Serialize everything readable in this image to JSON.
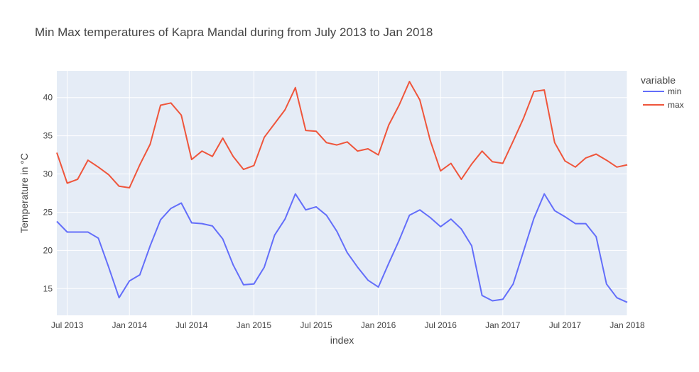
{
  "chart_data": {
    "type": "line",
    "title": "Min Max temperatures of Kapra Mandal during from July 2013 to Jan 2018",
    "xlabel": "index",
    "ylabel": "Temperature in °C",
    "x_tick_labels": [
      "Jul 2013",
      "Jan 2014",
      "Jul 2014",
      "Jan 2015",
      "Jul 2015",
      "Jan 2016",
      "Jul 2016",
      "Jan 2017",
      "Jul 2017",
      "Jan 2018"
    ],
    "y_ticks": [
      15,
      20,
      25,
      30,
      35,
      40
    ],
    "xlim": [
      "2013-06",
      "2018-01"
    ],
    "ylim": [
      11.5,
      43.5
    ],
    "grid": true,
    "legend_title": "variable",
    "legend_position": "top-right",
    "x": [
      "2013-06",
      "2013-07",
      "2013-08",
      "2013-09",
      "2013-10",
      "2013-11",
      "2013-12",
      "2014-01",
      "2014-02",
      "2014-03",
      "2014-04",
      "2014-05",
      "2014-06",
      "2014-07",
      "2014-08",
      "2014-09",
      "2014-10",
      "2014-11",
      "2014-12",
      "2015-01",
      "2015-02",
      "2015-03",
      "2015-04",
      "2015-05",
      "2015-06",
      "2015-07",
      "2015-08",
      "2015-09",
      "2015-10",
      "2015-11",
      "2015-12",
      "2016-01",
      "2016-02",
      "2016-03",
      "2016-04",
      "2016-05",
      "2016-06",
      "2016-07",
      "2016-08",
      "2016-09",
      "2016-10",
      "2016-11",
      "2016-12",
      "2017-01",
      "2017-02",
      "2017-03",
      "2017-04",
      "2017-05",
      "2017-06",
      "2017-07",
      "2017-08",
      "2017-09",
      "2017-10",
      "2017-11",
      "2017-12",
      "2018-01"
    ],
    "series": [
      {
        "name": "min",
        "color": "#636efa",
        "values": [
          23.8,
          22.4,
          22.4,
          22.4,
          21.6,
          17.8,
          13.8,
          16.0,
          16.8,
          20.6,
          24.0,
          25.5,
          26.2,
          23.6,
          23.5,
          23.2,
          21.5,
          18.1,
          15.5,
          15.6,
          17.8,
          22.0,
          24.1,
          27.4,
          25.3,
          25.7,
          24.6,
          22.5,
          19.7,
          17.8,
          16.1,
          15.2,
          18.3,
          21.3,
          24.6,
          25.3,
          24.3,
          23.1,
          24.1,
          22.8,
          20.6,
          14.1,
          13.4,
          13.6,
          15.6,
          19.9,
          24.2,
          27.4,
          25.2,
          24.4,
          23.5,
          23.5,
          21.8,
          15.6,
          13.8,
          13.2
        ]
      },
      {
        "name": "max",
        "color": "#ef553b",
        "values": [
          32.8,
          28.8,
          29.3,
          31.8,
          30.9,
          29.9,
          28.4,
          28.2,
          31.2,
          33.9,
          39.0,
          39.3,
          37.7,
          31.9,
          33.0,
          32.3,
          34.7,
          32.3,
          30.6,
          31.1,
          34.8,
          36.6,
          38.4,
          41.3,
          35.7,
          35.6,
          34.1,
          33.8,
          34.2,
          33.0,
          33.3,
          32.5,
          36.4,
          39.0,
          42.1,
          39.7,
          34.4,
          30.4,
          31.4,
          29.3,
          31.3,
          33.0,
          31.6,
          31.4,
          34.3,
          37.3,
          40.8,
          41.0,
          34.1,
          31.7,
          30.9,
          32.1,
          32.6,
          31.8,
          30.9,
          31.2
        ]
      }
    ]
  }
}
